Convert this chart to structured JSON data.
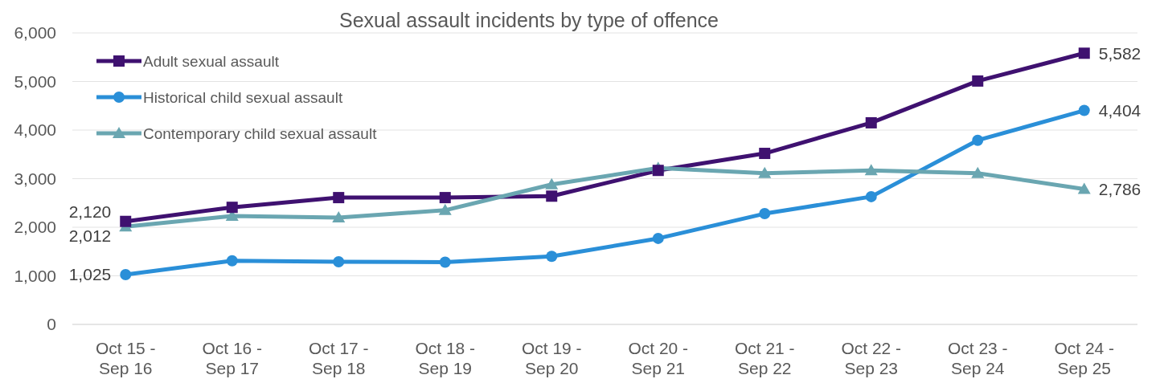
{
  "chart_data": {
    "type": "line",
    "title": "Sexual assault incidents by type of offence",
    "categories": [
      "Oct 15 - Sep 16",
      "Oct 16 - Sep 17",
      "Oct 17 - Sep 18",
      "Oct 18 - Sep 19",
      "Oct 19 - Sep 20",
      "Oct 20 - Sep 21",
      "Oct 21 - Sep 22",
      "Oct 22 - Sep 23",
      "Oct 23 - Sep 24",
      "Oct 24 - Sep 25"
    ],
    "series": [
      {
        "name": "Adult sexual assault",
        "color": "#3f1170",
        "marker": "square",
        "values": [
          2120,
          2410,
          2610,
          2610,
          2640,
          3170,
          3520,
          4150,
          5010,
          5582
        ],
        "value_labels": [
          "2,120",
          null,
          null,
          null,
          null,
          null,
          null,
          null,
          null,
          "5,582"
        ]
      },
      {
        "name": "Historical child sexual assault",
        "color": "#2a8fd8",
        "marker": "circle",
        "values": [
          1025,
          1310,
          1290,
          1280,
          1400,
          1770,
          2280,
          2630,
          3790,
          4404
        ],
        "value_labels": [
          "1,025",
          null,
          null,
          null,
          null,
          null,
          null,
          null,
          null,
          "4,404"
        ]
      },
      {
        "name": "Contemporary child sexual assault",
        "color": "#6aa6b1",
        "marker": "triangle",
        "values": [
          2012,
          2230,
          2200,
          2350,
          2880,
          3220,
          3110,
          3170,
          3110,
          2786
        ],
        "value_labels": [
          "2,012",
          null,
          null,
          null,
          null,
          null,
          null,
          null,
          null,
          "2,786"
        ]
      }
    ],
    "ylim": [
      0,
      6000
    ],
    "yticks": [
      {
        "value": 0,
        "label": "0"
      },
      {
        "value": 1000,
        "label": "1,000"
      },
      {
        "value": 2000,
        "label": "2,000"
      },
      {
        "value": 3000,
        "label": "3,000"
      },
      {
        "value": 4000,
        "label": "4,000"
      },
      {
        "value": 5000,
        "label": "5,000"
      },
      {
        "value": 6000,
        "label": "6,000"
      }
    ],
    "grid": "y",
    "legend": "top left",
    "line_style": "solid"
  }
}
